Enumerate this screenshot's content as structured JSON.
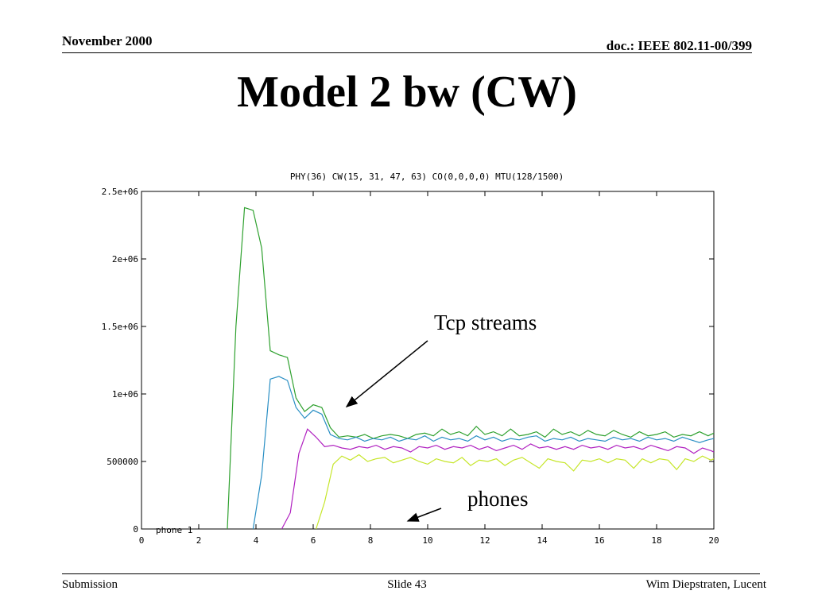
{
  "slide": {
    "date": "November 2000",
    "doc": "doc.: IEEE 802.11-00/399",
    "title": "Model 2 bw (CW)",
    "footer_left": "Submission",
    "footer_center": "Slide 43",
    "footer_right": "Wim Diepstraten, Lucent"
  },
  "annotations": {
    "tcp": "Tcp streams",
    "phones": "phones"
  },
  "chart_data": {
    "type": "line",
    "title": "PHY(36) CW(15, 31, 47, 63) CO(0,0,0,0) MTU(128/1500)",
    "xlabel": "",
    "ylabel": "",
    "xlim": [
      0,
      20
    ],
    "ylim": [
      0,
      2500000
    ],
    "x_ticks": [
      0,
      2,
      4,
      6,
      8,
      10,
      12,
      14,
      16,
      18,
      20
    ],
    "y_ticks": [
      0,
      500000,
      1000000,
      1500000,
      2000000,
      2500000
    ],
    "y_tick_labels": [
      "0",
      "500000",
      "1e+06",
      "1.5e+06",
      "2e+06",
      "2.5e+06"
    ],
    "grid": false,
    "legend_entries": [
      "phone 1"
    ],
    "colors": {
      "green": "#2fa12f",
      "blue": "#2a8fc4",
      "magenta": "#b020c0",
      "yellow": "#c6e62a",
      "axis": "#000000"
    },
    "series": [
      {
        "color": "#2fa12f",
        "x": [
          3.0,
          3.3,
          3.6,
          3.9,
          4.2,
          4.5,
          4.8,
          5.1,
          5.4,
          5.7,
          6.0,
          6.3,
          6.6,
          6.9,
          7.2,
          7.5,
          7.8,
          8.1,
          8.4,
          8.7,
          9.0,
          9.3,
          9.6,
          9.9,
          10.2,
          10.5,
          10.8,
          11.1,
          11.4,
          11.7,
          12.0,
          12.3,
          12.6,
          12.9,
          13.2,
          13.5,
          13.8,
          14.1,
          14.4,
          14.7,
          15.0,
          15.3,
          15.6,
          15.9,
          16.2,
          16.5,
          16.8,
          17.1,
          17.4,
          17.7,
          18.0,
          18.3,
          18.6,
          18.9,
          19.2,
          19.5,
          19.8,
          20.0
        ],
        "y": [
          0,
          1500000,
          2380000,
          2360000,
          2080000,
          1320000,
          1290000,
          1270000,
          970000,
          870000,
          920000,
          900000,
          750000,
          680000,
          690000,
          680000,
          700000,
          670000,
          690000,
          700000,
          690000,
          670000,
          700000,
          710000,
          690000,
          740000,
          700000,
          720000,
          690000,
          760000,
          700000,
          720000,
          690000,
          740000,
          690000,
          700000,
          720000,
          680000,
          740000,
          700000,
          720000,
          690000,
          730000,
          700000,
          690000,
          730000,
          700000,
          680000,
          720000,
          690000,
          700000,
          720000,
          680000,
          700000,
          690000,
          720000,
          690000,
          710000
        ]
      },
      {
        "color": "#2a8fc4",
        "x": [
          3.9,
          4.2,
          4.5,
          4.8,
          5.1,
          5.4,
          5.7,
          6.0,
          6.3,
          6.6,
          6.9,
          7.2,
          7.5,
          7.8,
          8.1,
          8.4,
          8.7,
          9.0,
          9.3,
          9.6,
          9.9,
          10.2,
          10.5,
          10.8,
          11.1,
          11.4,
          11.7,
          12.0,
          12.3,
          12.6,
          12.9,
          13.2,
          13.5,
          13.8,
          14.1,
          14.4,
          14.7,
          15.0,
          15.3,
          15.6,
          15.9,
          16.2,
          16.5,
          16.8,
          17.1,
          17.4,
          17.7,
          18.0,
          18.3,
          18.6,
          18.9,
          19.2,
          19.5,
          19.8,
          20.0
        ],
        "y": [
          0,
          400000,
          1110000,
          1130000,
          1100000,
          900000,
          820000,
          880000,
          850000,
          700000,
          670000,
          660000,
          680000,
          650000,
          670000,
          660000,
          680000,
          650000,
          670000,
          660000,
          690000,
          650000,
          680000,
          660000,
          670000,
          650000,
          690000,
          660000,
          680000,
          650000,
          670000,
          660000,
          680000,
          690000,
          650000,
          670000,
          660000,
          680000,
          650000,
          670000,
          660000,
          650000,
          680000,
          660000,
          670000,
          650000,
          680000,
          660000,
          670000,
          650000,
          680000,
          660000,
          640000,
          660000,
          670000
        ]
      },
      {
        "color": "#b020c0",
        "x": [
          4.9,
          5.2,
          5.5,
          5.8,
          6.1,
          6.4,
          6.7,
          7.0,
          7.3,
          7.6,
          7.9,
          8.2,
          8.5,
          8.8,
          9.1,
          9.4,
          9.7,
          10.0,
          10.3,
          10.6,
          10.9,
          11.2,
          11.5,
          11.8,
          12.1,
          12.4,
          12.7,
          13.0,
          13.3,
          13.6,
          13.9,
          14.2,
          14.5,
          14.8,
          15.1,
          15.4,
          15.7,
          16.0,
          16.3,
          16.6,
          16.9,
          17.2,
          17.5,
          17.8,
          18.1,
          18.4,
          18.7,
          19.0,
          19.3,
          19.6,
          19.9,
          20.0
        ],
        "y": [
          0,
          120000,
          560000,
          740000,
          680000,
          610000,
          620000,
          600000,
          590000,
          610000,
          600000,
          620000,
          590000,
          610000,
          600000,
          570000,
          610000,
          600000,
          620000,
          590000,
          610000,
          600000,
          620000,
          590000,
          610000,
          580000,
          600000,
          620000,
          590000,
          630000,
          600000,
          610000,
          590000,
          610000,
          590000,
          620000,
          600000,
          610000,
          590000,
          620000,
          600000,
          610000,
          590000,
          620000,
          600000,
          580000,
          610000,
          600000,
          560000,
          600000,
          580000,
          570000
        ]
      },
      {
        "color": "#c6e62a",
        "x": [
          6.1,
          6.4,
          6.7,
          7.0,
          7.3,
          7.6,
          7.9,
          8.2,
          8.5,
          8.8,
          9.1,
          9.4,
          9.7,
          10.0,
          10.3,
          10.6,
          10.9,
          11.2,
          11.5,
          11.8,
          12.1,
          12.4,
          12.7,
          13.0,
          13.3,
          13.6,
          13.9,
          14.2,
          14.5,
          14.8,
          15.1,
          15.4,
          15.7,
          16.0,
          16.3,
          16.6,
          16.9,
          17.2,
          17.5,
          17.8,
          18.1,
          18.4,
          18.7,
          19.0,
          19.3,
          19.6,
          19.9,
          20.0
        ],
        "y": [
          0,
          200000,
          480000,
          540000,
          510000,
          550000,
          500000,
          520000,
          530000,
          490000,
          510000,
          530000,
          500000,
          480000,
          520000,
          500000,
          490000,
          530000,
          470000,
          510000,
          500000,
          520000,
          470000,
          510000,
          530000,
          490000,
          450000,
          520000,
          500000,
          490000,
          430000,
          510000,
          500000,
          520000,
          490000,
          520000,
          510000,
          450000,
          520000,
          490000,
          520000,
          510000,
          440000,
          520000,
          500000,
          540000,
          510000,
          520000
        ]
      }
    ]
  }
}
